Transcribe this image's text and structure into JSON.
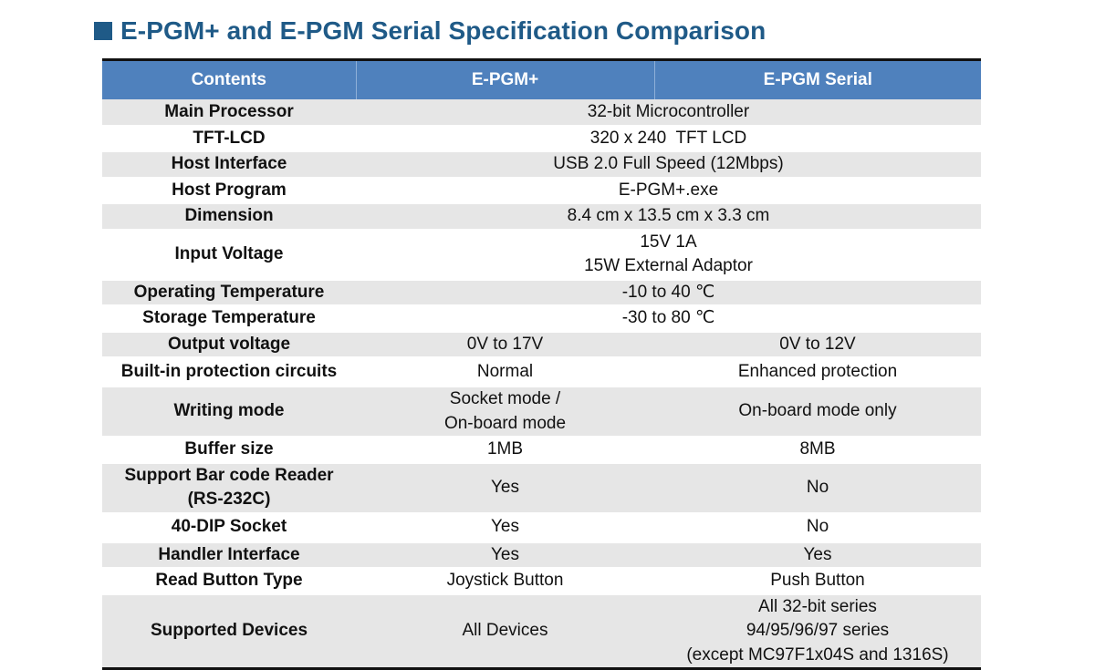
{
  "title": "E-PGM+ and E-PGM Serial Specification Comparison",
  "colors": {
    "title": "#1f5a87",
    "header_bg": "#4f81bd",
    "shade_row": "#e6e6e6"
  },
  "icons": {
    "title_bullet": "square-bullet-icon"
  },
  "table": {
    "headers": [
      "Contents",
      "E-PGM+",
      "E-PGM Serial"
    ],
    "rows": {
      "main_processor": {
        "label": "Main Processor",
        "shared": "32-bit Microcontroller"
      },
      "tft_lcd": {
        "label": "TFT-LCD",
        "shared": "320 x 240  TFT LCD"
      },
      "host_interface": {
        "label": "Host Interface",
        "shared": "USB 2.0 Full Speed (12Mbps)"
      },
      "host_program": {
        "label": "Host Program",
        "shared": "E-PGM+.exe"
      },
      "dimension": {
        "label": "Dimension",
        "shared": "8.4 cm x 13.5 cm x 3.3 cm"
      },
      "input_voltage": {
        "label": "Input Voltage",
        "shared_line1": "15V 1A",
        "shared_line2": "15W External Adaptor"
      },
      "operating_temperature": {
        "label": "Operating Temperature",
        "shared": "-10 to 40 ℃"
      },
      "storage_temperature": {
        "label": "Storage Temperature",
        "shared": "-30 to 80 ℃"
      },
      "output_voltage": {
        "label": "Output voltage",
        "epgm_plus": "0V to 17V",
        "epgm_serial": "0V to 12V"
      },
      "protection_circuits": {
        "label": "Built-in protection circuits",
        "epgm_plus": "Normal",
        "epgm_serial": "Enhanced protection"
      },
      "writing_mode": {
        "label": "Writing mode",
        "epgm_plus_line1": "Socket mode /",
        "epgm_plus_line2": "On-board mode",
        "epgm_serial": "On-board mode only"
      },
      "buffer_size": {
        "label": "Buffer size",
        "epgm_plus": "1MB",
        "epgm_serial": "8MB"
      },
      "barcode_reader": {
        "label_line1": "Support Bar code Reader",
        "label_line2": "(RS-232C)",
        "epgm_plus": "Yes",
        "epgm_serial": "No"
      },
      "dip_socket": {
        "label": "40-DIP Socket",
        "epgm_plus": "Yes",
        "epgm_serial": "No"
      },
      "handler_interface": {
        "label": "Handler Interface",
        "epgm_plus": "Yes",
        "epgm_serial": "Yes"
      },
      "read_button": {
        "label": "Read Button Type",
        "epgm_plus": "Joystick Button",
        "epgm_serial": "Push Button"
      },
      "supported_devices": {
        "label": "Supported Devices",
        "epgm_plus": "All Devices",
        "epgm_serial_line1": "All 32-bit series",
        "epgm_serial_line2": "94/95/96/97 series",
        "epgm_serial_line3": "(except MC97F1x04S and 1316S)"
      }
    }
  }
}
